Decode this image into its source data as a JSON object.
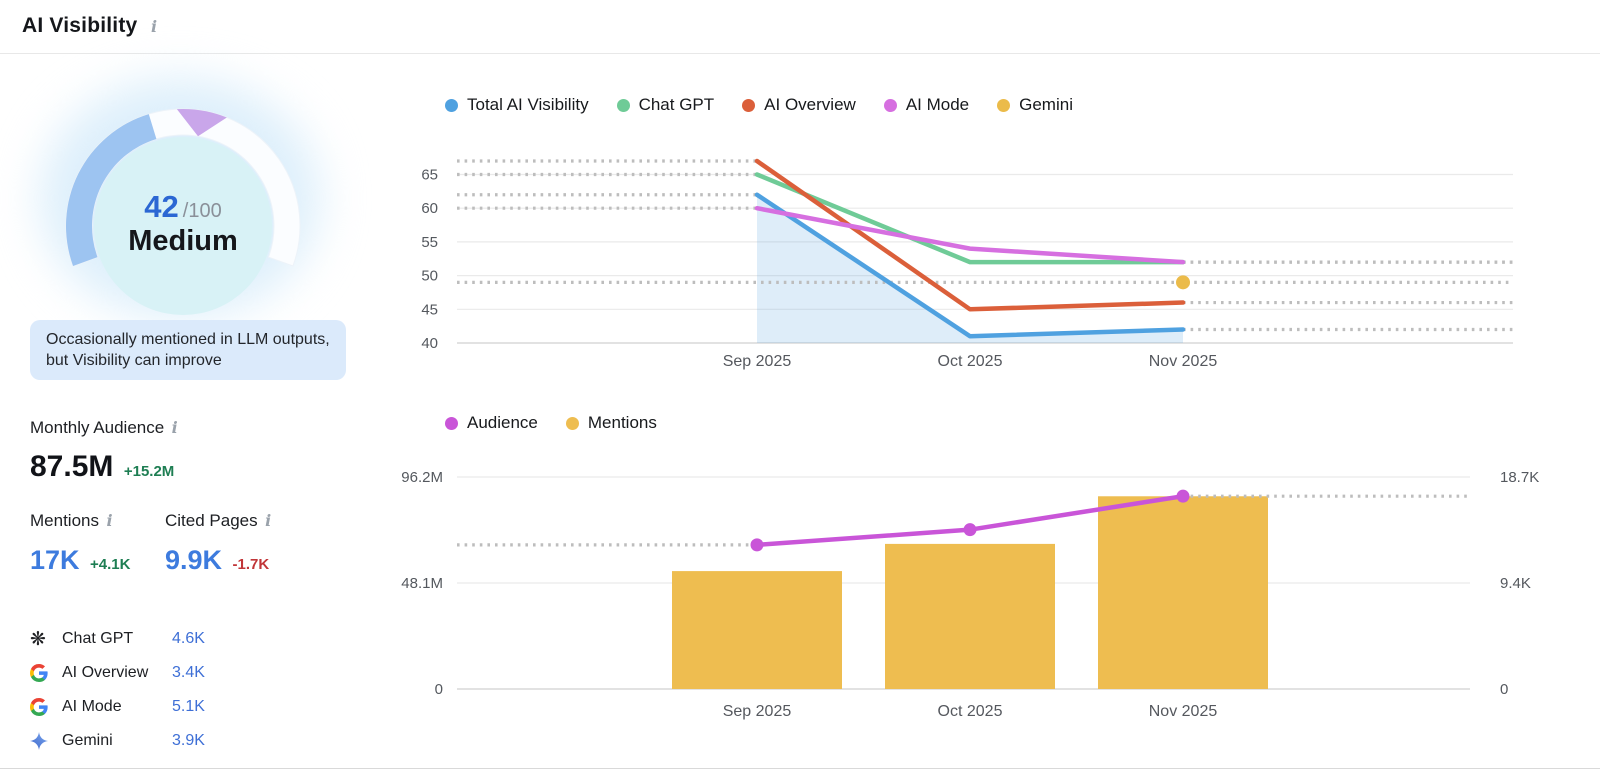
{
  "header": {
    "title": "AI Visibility"
  },
  "icons": {
    "info": "i"
  },
  "gauge": {
    "score": "42",
    "denominator": "/100",
    "level": "Medium",
    "description": "Occasionally mentioned in LLM outputs, but Visibility can improve"
  },
  "stats": {
    "monthly_audience": {
      "label": "Monthly Audience",
      "value": "87.5M",
      "delta": "+15.2M"
    },
    "mentions": {
      "label": "Mentions",
      "value": "17K",
      "delta": "+4.1K"
    },
    "cited_pages": {
      "label": "Cited Pages",
      "value": "9.9K",
      "delta": "-1.7K"
    }
  },
  "platforms": [
    {
      "name": "Chat GPT",
      "value": "4.6K",
      "icon": "chatgpt-icon"
    },
    {
      "name": "AI Overview",
      "value": "3.4K",
      "icon": "google-icon"
    },
    {
      "name": "AI Mode",
      "value": "5.1K",
      "icon": "google-icon"
    },
    {
      "name": "Gemini",
      "value": "3.9K",
      "icon": "gemini-icon"
    }
  ],
  "colors": {
    "accent_blue": "#3d7bde",
    "positive_green": "#1e7e53",
    "negative_red": "#c13538",
    "gauge_arc": "#9dc4f1",
    "gauge_marker": "#c9a6ea",
    "gauge_score_blue": "#2b67d3",
    "note_background": "#dbeafb",
    "dotted_line_gray": "#bdbdbd"
  },
  "chart_data": [
    {
      "type": "line",
      "title": "AI Visibility by platform over time",
      "categories": [
        "Sep 2025",
        "Oct 2025",
        "Nov 2025"
      ],
      "series": [
        {
          "name": "Total AI Visibility",
          "color": "#4fa1e0",
          "values": [
            62,
            41,
            42
          ],
          "area": true
        },
        {
          "name": "Chat GPT",
          "color": "#6fcb97",
          "values": [
            65,
            52,
            52
          ]
        },
        {
          "name": "AI Overview",
          "color": "#db5f3a",
          "values": [
            67,
            45,
            46
          ]
        },
        {
          "name": "AI Mode",
          "color": "#d66fe0",
          "values": [
            60,
            54,
            52
          ]
        },
        {
          "name": "Gemini",
          "color": "#ebbb4a",
          "values": [
            null,
            null,
            49
          ],
          "dot_only": true
        }
      ],
      "yticks": [
        40,
        45,
        50,
        55,
        60,
        65
      ],
      "ylim": [
        38,
        68
      ],
      "grid": true,
      "legend_position": "top",
      "xlabel": "",
      "ylabel": ""
    },
    {
      "type": "combo",
      "title": "Audience and Mentions over time",
      "categories": [
        "Sep 2025",
        "Oct 2025",
        "Nov 2025"
      ],
      "series": [
        {
          "name": "Audience",
          "chart": "line",
          "axis": "left",
          "color": "#c955d8",
          "values": [
            65.4,
            72.3,
            87.5
          ],
          "unit": "M"
        },
        {
          "name": "Mentions",
          "chart": "bar",
          "axis": "right",
          "color": "#eebd50",
          "values": [
            10.4,
            12.8,
            17.0
          ],
          "unit": "K"
        }
      ],
      "left_ticks": [
        "0",
        "48.1M",
        "96.2M"
      ],
      "left_max": 96.2,
      "right_ticks": [
        "0",
        "9.4K",
        "18.7K"
      ],
      "right_max": 18.7,
      "grid": true,
      "legend_position": "top"
    }
  ]
}
